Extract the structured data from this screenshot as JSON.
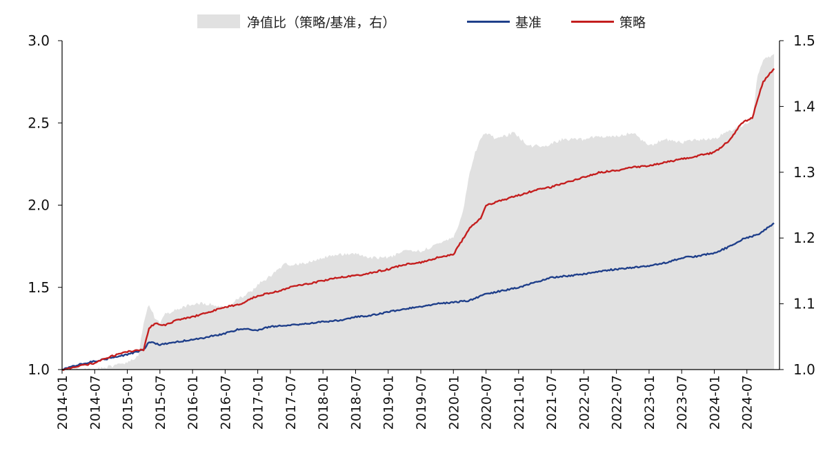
{
  "legend": {
    "ratio": "净值比（策略/基准，右）",
    "benchmark": "基准",
    "strategy": "策略"
  },
  "colors": {
    "ratio_fill": "#e1e1e1",
    "benchmark": "#1f3f8a",
    "strategy": "#c41e1e",
    "axis": "#000000"
  },
  "chart_data": {
    "type": "line",
    "x_start": "2014-01",
    "x_end": "2024-12",
    "x_tick_labels": [
      "2014-01",
      "2014-07",
      "2015-01",
      "2015-07",
      "2016-01",
      "2016-07",
      "2017-01",
      "2017-07",
      "2018-01",
      "2018-07",
      "2019-01",
      "2019-07",
      "2020-01",
      "2020-07",
      "2021-01",
      "2021-07",
      "2022-01",
      "2022-07",
      "2023-01",
      "2023-07",
      "2024-01",
      "2024-07"
    ],
    "y_left": {
      "lim": [
        1.0,
        3.0
      ],
      "ticks": [
        "1.0",
        "1.5",
        "2.0",
        "2.5",
        "3.0"
      ]
    },
    "y_right": {
      "lim": [
        1.0,
        1.5
      ],
      "ticks": [
        "1.0",
        "1.1",
        "1.2",
        "1.3",
        "1.4",
        "1.5"
      ]
    },
    "series": [
      {
        "name": "净值比（策略/基准，右）",
        "type": "area",
        "axis": "right",
        "x": [
          "2014-01",
          "2014-07",
          "2015-01",
          "2015-03",
          "2015-04",
          "2015-05",
          "2015-06",
          "2015-07",
          "2015-08",
          "2015-10",
          "2016-01",
          "2016-04",
          "2016-07",
          "2016-10",
          "2016-12",
          "2017-01",
          "2017-03",
          "2017-06",
          "2017-09",
          "2018-01",
          "2018-04",
          "2018-07",
          "2018-10",
          "2019-01",
          "2019-04",
          "2019-07",
          "2019-10",
          "2020-01",
          "2020-02",
          "2020-03",
          "2020-04",
          "2020-05",
          "2020-06",
          "2020-07",
          "2020-09",
          "2020-12",
          "2021-03",
          "2021-06",
          "2021-09",
          "2022-01",
          "2022-04",
          "2022-07",
          "2022-10",
          "2023-01",
          "2023-04",
          "2023-07",
          "2023-10",
          "2024-01",
          "2024-03",
          "2024-06",
          "2024-08",
          "2024-09",
          "2024-10",
          "2024-12"
        ],
        "values": [
          1.0,
          1.0,
          1.01,
          1.02,
          1.07,
          1.1,
          1.08,
          1.07,
          1.085,
          1.09,
          1.1,
          1.1,
          1.095,
          1.11,
          1.12,
          1.13,
          1.14,
          1.16,
          1.16,
          1.17,
          1.175,
          1.175,
          1.17,
          1.17,
          1.18,
          1.18,
          1.19,
          1.2,
          1.22,
          1.25,
          1.3,
          1.33,
          1.35,
          1.36,
          1.35,
          1.36,
          1.34,
          1.34,
          1.35,
          1.35,
          1.355,
          1.355,
          1.36,
          1.34,
          1.35,
          1.345,
          1.35,
          1.35,
          1.36,
          1.37,
          1.38,
          1.45,
          1.47,
          1.48
        ]
      },
      {
        "name": "基准",
        "type": "line",
        "axis": "left",
        "x": [
          "2014-01",
          "2014-04",
          "2014-07",
          "2014-10",
          "2015-01",
          "2015-04",
          "2015-05",
          "2015-07",
          "2015-10",
          "2016-01",
          "2016-04",
          "2016-07",
          "2016-10",
          "2017-01",
          "2017-03",
          "2017-07",
          "2017-10",
          "2018-01",
          "2018-04",
          "2018-07",
          "2018-10",
          "2019-01",
          "2019-04",
          "2019-07",
          "2019-10",
          "2020-01",
          "2020-04",
          "2020-07",
          "2020-10",
          "2021-01",
          "2021-04",
          "2021-07",
          "2021-10",
          "2022-01",
          "2022-04",
          "2022-07",
          "2022-10",
          "2023-01",
          "2023-04",
          "2023-07",
          "2023-10",
          "2024-01",
          "2024-04",
          "2024-06",
          "2024-09",
          "2024-12"
        ],
        "values": [
          1.0,
          1.03,
          1.05,
          1.07,
          1.09,
          1.12,
          1.17,
          1.15,
          1.17,
          1.18,
          1.2,
          1.22,
          1.25,
          1.24,
          1.26,
          1.27,
          1.28,
          1.29,
          1.3,
          1.32,
          1.33,
          1.35,
          1.37,
          1.38,
          1.4,
          1.41,
          1.42,
          1.46,
          1.48,
          1.5,
          1.53,
          1.56,
          1.57,
          1.58,
          1.6,
          1.61,
          1.62,
          1.63,
          1.65,
          1.68,
          1.69,
          1.71,
          1.75,
          1.79,
          1.82,
          1.89
        ]
      },
      {
        "name": "策略",
        "type": "line",
        "axis": "left",
        "x": [
          "2014-01",
          "2014-04",
          "2014-07",
          "2014-10",
          "2015-01",
          "2015-04",
          "2015-05",
          "2015-06",
          "2015-08",
          "2015-10",
          "2016-01",
          "2016-04",
          "2016-07",
          "2016-10",
          "2017-01",
          "2017-04",
          "2017-07",
          "2017-10",
          "2018-01",
          "2018-04",
          "2018-07",
          "2018-10",
          "2019-01",
          "2019-04",
          "2019-07",
          "2019-10",
          "2020-01",
          "2020-04",
          "2020-06",
          "2020-07",
          "2020-10",
          "2021-01",
          "2021-04",
          "2021-07",
          "2021-10",
          "2022-01",
          "2022-04",
          "2022-07",
          "2022-10",
          "2023-01",
          "2023-04",
          "2023-07",
          "2023-10",
          "2024-01",
          "2024-04",
          "2024-06",
          "2024-08",
          "2024-09",
          "2024-10",
          "2024-12"
        ],
        "values": [
          1.0,
          1.02,
          1.04,
          1.08,
          1.11,
          1.12,
          1.25,
          1.28,
          1.27,
          1.3,
          1.32,
          1.35,
          1.38,
          1.4,
          1.45,
          1.47,
          1.5,
          1.52,
          1.54,
          1.56,
          1.57,
          1.59,
          1.61,
          1.64,
          1.65,
          1.68,
          1.7,
          1.86,
          1.92,
          2.0,
          2.03,
          2.06,
          2.09,
          2.11,
          2.14,
          2.17,
          2.2,
          2.21,
          2.23,
          2.24,
          2.26,
          2.28,
          2.3,
          2.32,
          2.4,
          2.5,
          2.53,
          2.65,
          2.75,
          2.83
        ]
      }
    ]
  }
}
